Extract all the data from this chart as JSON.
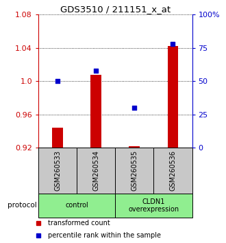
{
  "title": "GDS3510 / 211151_x_at",
  "categories": [
    "GSM260533",
    "GSM260534",
    "GSM260535",
    "GSM260536"
  ],
  "red_values": [
    0.944,
    1.008,
    0.922,
    1.042
  ],
  "blue_values": [
    50,
    58,
    30,
    78
  ],
  "ylim_left": [
    0.92,
    1.08
  ],
  "ylim_right": [
    0,
    100
  ],
  "yticks_left": [
    0.92,
    0.96,
    1.0,
    1.04,
    1.08
  ],
  "yticks_right": [
    0,
    25,
    50,
    75,
    100
  ],
  "ytick_labels_right": [
    "0",
    "25",
    "50",
    "75",
    "100%"
  ],
  "bar_color": "#cc0000",
  "dot_color": "#0000cc",
  "bar_bottom": 0.92,
  "protocol_labels": [
    "control",
    "CLDN1\noverexpression"
  ],
  "protocol_color_light": "#90ee90",
  "sample_box_color": "#c8c8c8",
  "legend_red": "transformed count",
  "legend_blue": "percentile rank within the sample",
  "bg_color": "#ffffff"
}
